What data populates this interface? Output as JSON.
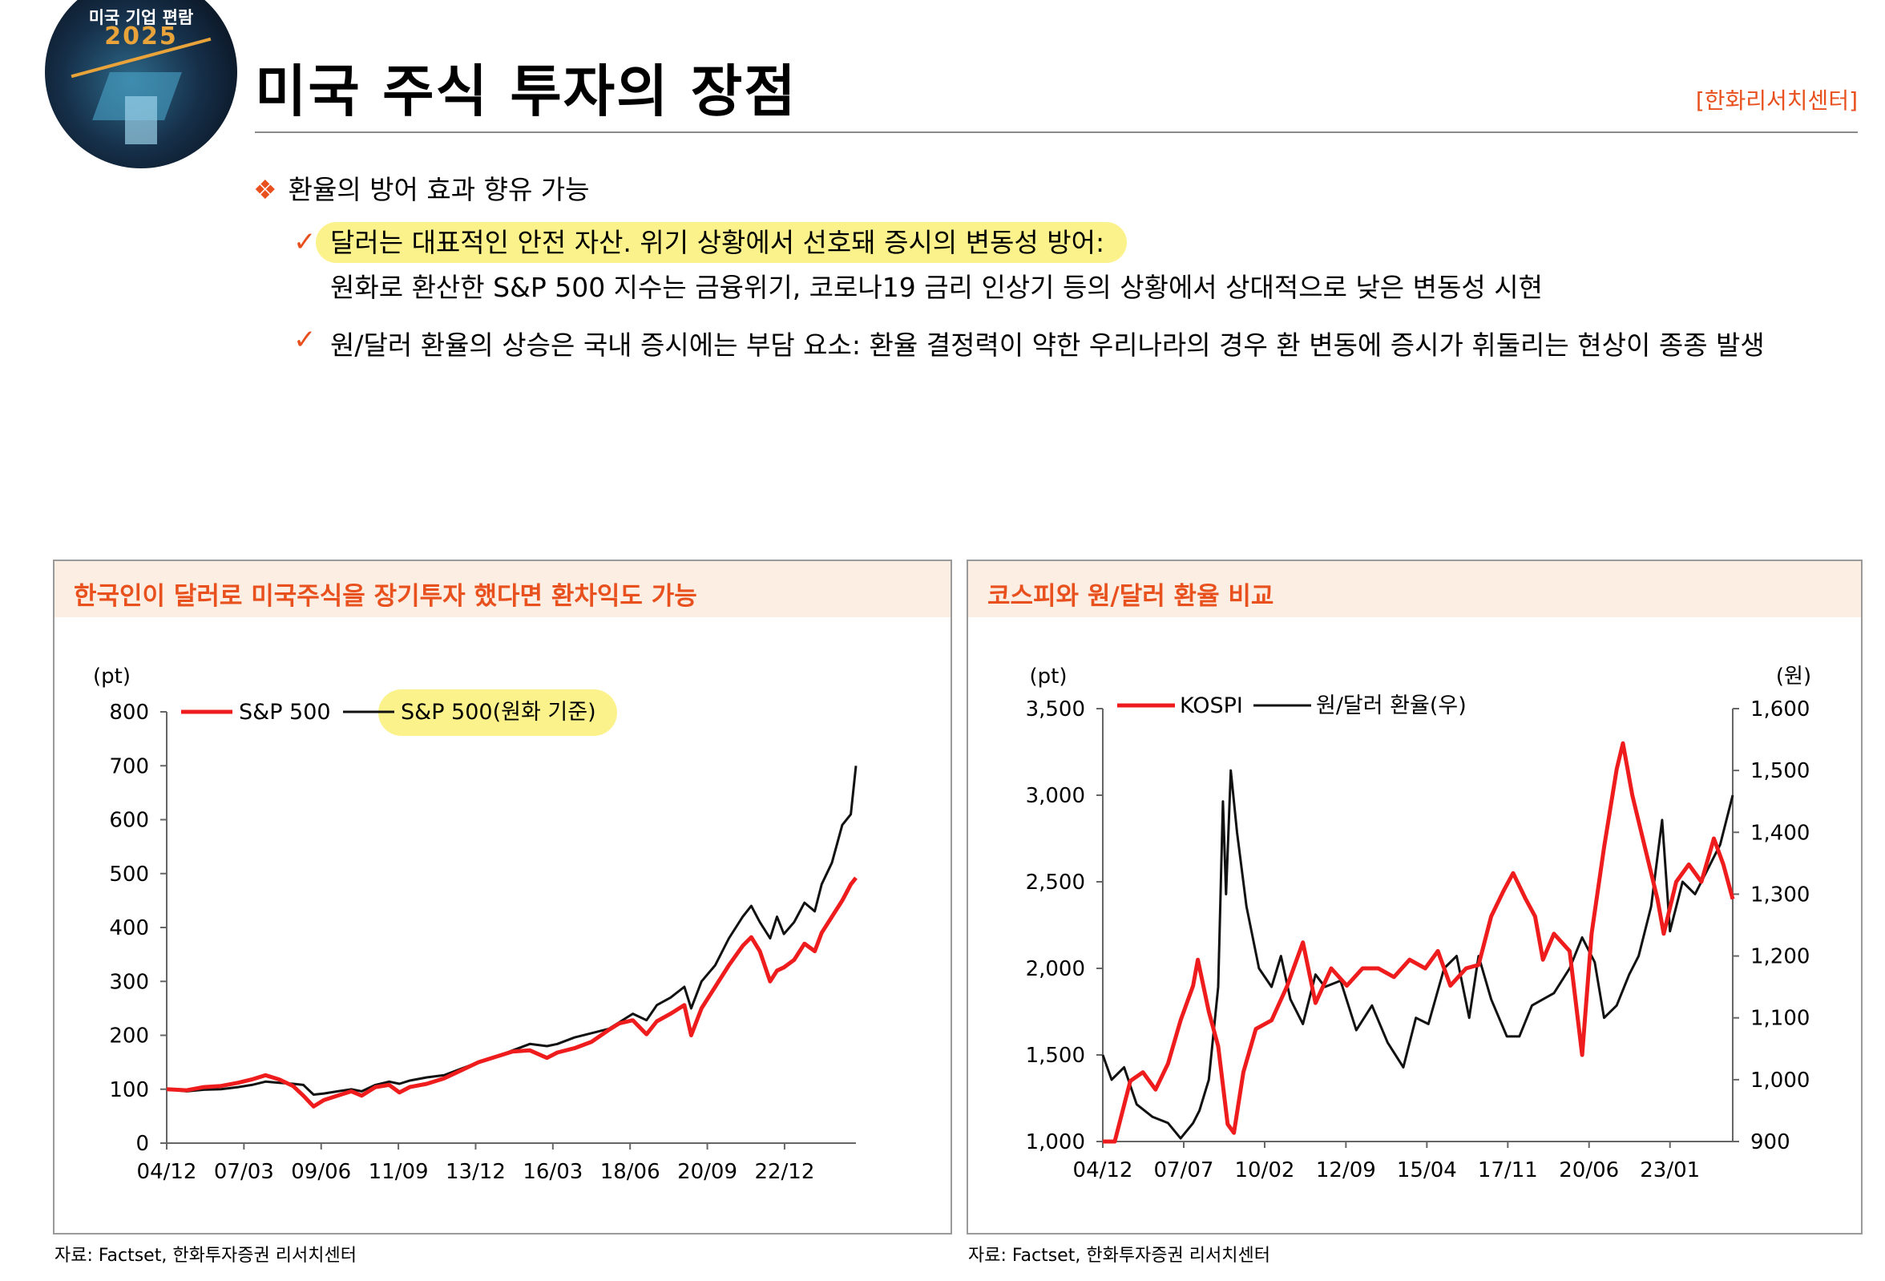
{
  "header": {
    "logo_line1": "미국 기업 편람",
    "logo_line2": "2025",
    "title": "미국 주식 투자의 장점",
    "source_tag": "[한화리서치센터]"
  },
  "bullets": {
    "main": "환율의 방어 효과 향유 가능",
    "sub1_highlight": "달러는 대표적인 안전 자산. 위기 상황에서 선호돼 증시의 변동성 방어:",
    "sub1_detail": "원화로 환산한 S&P 500 지수는 금융위기, 코로나19 금리 인상기 등의 상황에서 상대적으로 낮은 변동성 시현",
    "sub2": "원/달러 환율의 상승은 국내 증시에는 부담 요소: 환율 결정력이 약한 우리나라의 경우 환 변동에 증시가 휘둘리는 현상이 종종 발생"
  },
  "colors": {
    "accent": "#e8501e",
    "red_series": "#ee1c1c",
    "black_series": "#111111",
    "highlight": "#fbf28c",
    "panel_head": "#fdeee3"
  },
  "chart_data": [
    {
      "type": "line",
      "panel_title": "한국인이 달러로 미국주식을 장기투자 했다면 환차익도 가능",
      "unit_label": "(pt)",
      "ylim": [
        0,
        800
      ],
      "yticks": [
        "0",
        "100",
        "200",
        "300",
        "400",
        "500",
        "600",
        "700",
        "800"
      ],
      "yticks_values": [
        0,
        100,
        200,
        300,
        400,
        500,
        600,
        700,
        800
      ],
      "xrange": [
        2004.92,
        2025.0
      ],
      "xtick_labels": [
        "04/12",
        "07/03",
        "09/06",
        "11/09",
        "13/12",
        "16/03",
        "18/06",
        "20/09",
        "22/12"
      ],
      "xtick_positions": [
        2004.92,
        2007.17,
        2009.42,
        2011.67,
        2013.92,
        2016.17,
        2018.42,
        2020.67,
        2022.92
      ],
      "series": [
        {
          "name": "S&P 500",
          "color": "#ee1c1c",
          "points": [
            [
              2004.92,
              100
            ],
            [
              2005.5,
              98
            ],
            [
              2006.0,
              104
            ],
            [
              2006.5,
              106
            ],
            [
              2007.0,
              112
            ],
            [
              2007.4,
              118
            ],
            [
              2007.8,
              126
            ],
            [
              2008.2,
              118
            ],
            [
              2008.6,
              106
            ],
            [
              2008.9,
              88
            ],
            [
              2009.2,
              68
            ],
            [
              2009.5,
              80
            ],
            [
              2009.9,
              88
            ],
            [
              2010.3,
              96
            ],
            [
              2010.6,
              88
            ],
            [
              2011.0,
              104
            ],
            [
              2011.4,
              108
            ],
            [
              2011.7,
              94
            ],
            [
              2012.0,
              104
            ],
            [
              2012.5,
              110
            ],
            [
              2013.0,
              120
            ],
            [
              2013.5,
              135
            ],
            [
              2014.0,
              150
            ],
            [
              2014.5,
              160
            ],
            [
              2015.0,
              170
            ],
            [
              2015.5,
              172
            ],
            [
              2016.0,
              158
            ],
            [
              2016.3,
              168
            ],
            [
              2016.8,
              176
            ],
            [
              2017.3,
              188
            ],
            [
              2017.8,
              210
            ],
            [
              2018.1,
              222
            ],
            [
              2018.5,
              228
            ],
            [
              2018.9,
              202
            ],
            [
              2019.2,
              226
            ],
            [
              2019.6,
              240
            ],
            [
              2020.0,
              256
            ],
            [
              2020.2,
              200
            ],
            [
              2020.5,
              250
            ],
            [
              2020.9,
              290
            ],
            [
              2021.3,
              330
            ],
            [
              2021.7,
              366
            ],
            [
              2021.95,
              382
            ],
            [
              2022.2,
              356
            ],
            [
              2022.5,
              300
            ],
            [
              2022.7,
              320
            ],
            [
              2022.9,
              326
            ],
            [
              2023.2,
              340
            ],
            [
              2023.5,
              370
            ],
            [
              2023.8,
              356
            ],
            [
              2024.0,
              390
            ],
            [
              2024.3,
              420
            ],
            [
              2024.6,
              450
            ],
            [
              2024.85,
              480
            ],
            [
              2025.0,
              492
            ]
          ]
        },
        {
          "name": "S&P 500(원화 기준)",
          "color": "#111111",
          "points": [
            [
              2004.92,
              100
            ],
            [
              2005.5,
              96
            ],
            [
              2006.0,
              99
            ],
            [
              2006.5,
              100
            ],
            [
              2007.0,
              104
            ],
            [
              2007.4,
              108
            ],
            [
              2007.8,
              114
            ],
            [
              2008.2,
              112
            ],
            [
              2008.6,
              110
            ],
            [
              2008.9,
              108
            ],
            [
              2009.2,
              90
            ],
            [
              2009.5,
              92
            ],
            [
              2009.9,
              96
            ],
            [
              2010.3,
              100
            ],
            [
              2010.6,
              96
            ],
            [
              2011.0,
              108
            ],
            [
              2011.4,
              114
            ],
            [
              2011.7,
              110
            ],
            [
              2012.0,
              116
            ],
            [
              2012.5,
              122
            ],
            [
              2013.0,
              126
            ],
            [
              2013.5,
              138
            ],
            [
              2014.0,
              150
            ],
            [
              2014.5,
              160
            ],
            [
              2015.0,
              172
            ],
            [
              2015.5,
              184
            ],
            [
              2016.0,
              180
            ],
            [
              2016.3,
              184
            ],
            [
              2016.8,
              196
            ],
            [
              2017.3,
              204
            ],
            [
              2017.8,
              212
            ],
            [
              2018.1,
              224
            ],
            [
              2018.5,
              240
            ],
            [
              2018.9,
              228
            ],
            [
              2019.2,
              256
            ],
            [
              2019.6,
              270
            ],
            [
              2020.0,
              290
            ],
            [
              2020.2,
              250
            ],
            [
              2020.5,
              300
            ],
            [
              2020.9,
              330
            ],
            [
              2021.3,
              380
            ],
            [
              2021.7,
              420
            ],
            [
              2021.95,
              440
            ],
            [
              2022.2,
              410
            ],
            [
              2022.5,
              380
            ],
            [
              2022.7,
              420
            ],
            [
              2022.9,
              388
            ],
            [
              2023.2,
              410
            ],
            [
              2023.5,
              446
            ],
            [
              2023.8,
              430
            ],
            [
              2024.0,
              480
            ],
            [
              2024.3,
              520
            ],
            [
              2024.6,
              590
            ],
            [
              2024.85,
              610
            ],
            [
              2025.0,
              700
            ]
          ]
        }
      ]
    },
    {
      "type": "line",
      "panel_title": "코스피와 원/달러 환율 비교",
      "left_unit_label": "(pt)",
      "right_unit_label": "(원)",
      "ylim_left": [
        1000,
        3500
      ],
      "ylim_right": [
        900,
        1600
      ],
      "yticks_left": [
        "1,000",
        "1,500",
        "2,000",
        "2,500",
        "3,000",
        "3,500"
      ],
      "yticks_left_values": [
        1000,
        1500,
        2000,
        2500,
        3000,
        3500
      ],
      "yticks_right": [
        "900",
        "1,000",
        "1,100",
        "1,200",
        "1,300",
        "1,400",
        "1,500",
        "1,600"
      ],
      "yticks_right_values": [
        900,
        1000,
        1100,
        1200,
        1300,
        1400,
        1500,
        1600
      ],
      "xrange": [
        2004.92,
        2025.0
      ],
      "xtick_labels": [
        "04/12",
        "07/07",
        "10/02",
        "12/09",
        "15/04",
        "17/11",
        "20/06",
        "23/01"
      ],
      "xtick_positions": [
        2004.92,
        2007.5,
        2010.08,
        2012.67,
        2015.25,
        2017.83,
        2020.42,
        2023.0
      ],
      "series": [
        {
          "name": "KOSPI",
          "axis": "left",
          "color": "#ee1c1c",
          "points": [
            [
              2004.92,
              900
            ],
            [
              2005.3,
              1000
            ],
            [
              2005.8,
              1350
            ],
            [
              2006.2,
              1400
            ],
            [
              2006.6,
              1300
            ],
            [
              2007.0,
              1450
            ],
            [
              2007.4,
              1700
            ],
            [
              2007.8,
              1900
            ],
            [
              2007.95,
              2050
            ],
            [
              2008.3,
              1750
            ],
            [
              2008.6,
              1550
            ],
            [
              2008.9,
              1100
            ],
            [
              2009.1,
              1050
            ],
            [
              2009.4,
              1400
            ],
            [
              2009.8,
              1650
            ],
            [
              2010.3,
              1700
            ],
            [
              2010.8,
              1900
            ],
            [
              2011.3,
              2150
            ],
            [
              2011.7,
              1800
            ],
            [
              2012.2,
              2000
            ],
            [
              2012.7,
              1900
            ],
            [
              2013.2,
              2000
            ],
            [
              2013.7,
              2000
            ],
            [
              2014.2,
              1950
            ],
            [
              2014.7,
              2050
            ],
            [
              2015.2,
              2000
            ],
            [
              2015.6,
              2100
            ],
            [
              2016.0,
              1900
            ],
            [
              2016.5,
              2000
            ],
            [
              2016.9,
              2020
            ],
            [
              2017.3,
              2300
            ],
            [
              2017.7,
              2450
            ],
            [
              2018.0,
              2550
            ],
            [
              2018.4,
              2400
            ],
            [
              2018.7,
              2300
            ],
            [
              2018.95,
              2050
            ],
            [
              2019.3,
              2200
            ],
            [
              2019.8,
              2100
            ],
            [
              2020.2,
              1500
            ],
            [
              2020.5,
              2200
            ],
            [
              2020.9,
              2700
            ],
            [
              2021.3,
              3150
            ],
            [
              2021.5,
              3300
            ],
            [
              2021.8,
              3000
            ],
            [
              2022.2,
              2700
            ],
            [
              2022.6,
              2400
            ],
            [
              2022.8,
              2200
            ],
            [
              2023.2,
              2500
            ],
            [
              2023.6,
              2600
            ],
            [
              2024.0,
              2500
            ],
            [
              2024.4,
              2750
            ],
            [
              2024.7,
              2600
            ],
            [
              2025.0,
              2400
            ]
          ]
        },
        {
          "name": "원/달러 환율(우)",
          "axis": "right",
          "color": "#111111",
          "points": [
            [
              2004.92,
              1040
            ],
            [
              2005.2,
              1000
            ],
            [
              2005.6,
              1020
            ],
            [
              2006.0,
              960
            ],
            [
              2006.5,
              940
            ],
            [
              2007.0,
              930
            ],
            [
              2007.4,
              905
            ],
            [
              2007.8,
              930
            ],
            [
              2008.0,
              950
            ],
            [
              2008.3,
              1000
            ],
            [
              2008.6,
              1150
            ],
            [
              2008.75,
              1450
            ],
            [
              2008.85,
              1300
            ],
            [
              2009.0,
              1500
            ],
            [
              2009.2,
              1400
            ],
            [
              2009.5,
              1280
            ],
            [
              2009.9,
              1180
            ],
            [
              2010.3,
              1150
            ],
            [
              2010.6,
              1200
            ],
            [
              2010.9,
              1130
            ],
            [
              2011.3,
              1090
            ],
            [
              2011.7,
              1170
            ],
            [
              2012.0,
              1150
            ],
            [
              2012.5,
              1160
            ],
            [
              2013.0,
              1080
            ],
            [
              2013.5,
              1120
            ],
            [
              2014.0,
              1060
            ],
            [
              2014.5,
              1020
            ],
            [
              2014.9,
              1100
            ],
            [
              2015.3,
              1090
            ],
            [
              2015.8,
              1180
            ],
            [
              2016.2,
              1200
            ],
            [
              2016.6,
              1100
            ],
            [
              2016.9,
              1200
            ],
            [
              2017.3,
              1130
            ],
            [
              2017.8,
              1070
            ],
            [
              2018.2,
              1070
            ],
            [
              2018.6,
              1120
            ],
            [
              2018.95,
              1130
            ],
            [
              2019.3,
              1140
            ],
            [
              2019.8,
              1180
            ],
            [
              2020.2,
              1230
            ],
            [
              2020.6,
              1190
            ],
            [
              2020.9,
              1100
            ],
            [
              2021.3,
              1120
            ],
            [
              2021.7,
              1170
            ],
            [
              2022.0,
              1200
            ],
            [
              2022.4,
              1280
            ],
            [
              2022.75,
              1420
            ],
            [
              2023.0,
              1240
            ],
            [
              2023.4,
              1320
            ],
            [
              2023.8,
              1300
            ],
            [
              2024.2,
              1340
            ],
            [
              2024.6,
              1380
            ],
            [
              2024.9,
              1440
            ],
            [
              2025.0,
              1460
            ]
          ]
        }
      ]
    }
  ],
  "sources": {
    "left": "자료: Factset, 한화투자증권 리서치센터",
    "right": "자료: Factset, 한화투자증권 리서치센터"
  }
}
